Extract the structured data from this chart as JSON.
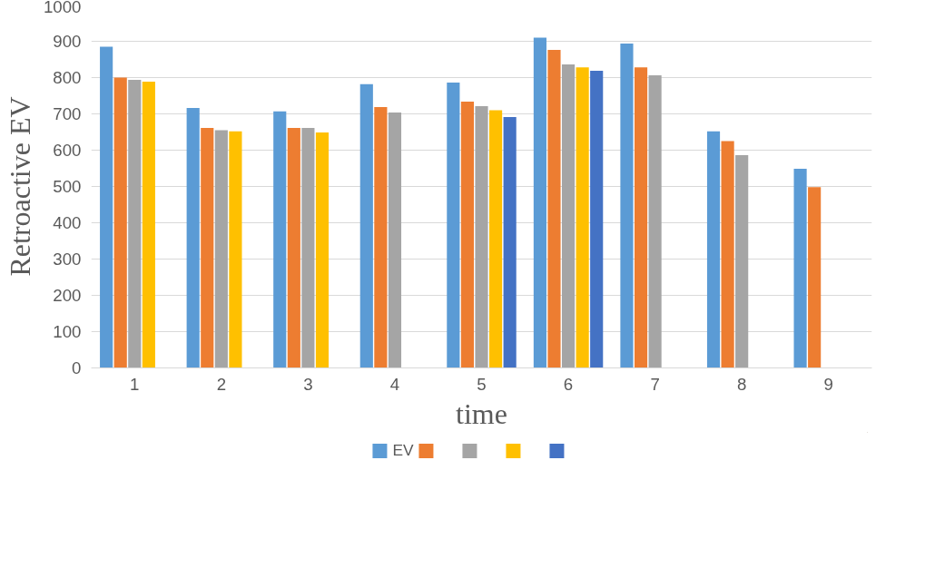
{
  "chart_data": {
    "type": "bar",
    "xlabel": "time",
    "ylabel": "Retroactive EV",
    "categories": [
      "1",
      "2",
      "3",
      "4",
      "5",
      "6",
      "7",
      "8",
      "9"
    ],
    "series": [
      {
        "name": "EV",
        "color": "#5b9bd5",
        "values": [
          885,
          716,
          707,
          782,
          786,
          910,
          894,
          652,
          549
        ]
      },
      {
        "color": "#ed7d31",
        "values": [
          800,
          661,
          661,
          719,
          734,
          876,
          828,
          625,
          498
        ]
      },
      {
        "color": "#a5a5a5",
        "values": [
          794,
          655,
          661,
          704,
          721,
          836,
          806,
          586,
          null
        ]
      },
      {
        "color": "#ffc000",
        "values": [
          789,
          652,
          649,
          null,
          710,
          828,
          null,
          null,
          null
        ]
      },
      {
        "color": "#4472c4",
        "values": [
          null,
          null,
          null,
          null,
          691,
          819,
          null,
          null,
          null
        ]
      }
    ],
    "ylim": [
      0,
      1000
    ],
    "yticks": [
      0,
      100,
      200,
      300,
      400,
      500,
      600,
      700,
      800,
      900,
      1000
    ],
    "grid": "y",
    "legend": "bottom"
  }
}
